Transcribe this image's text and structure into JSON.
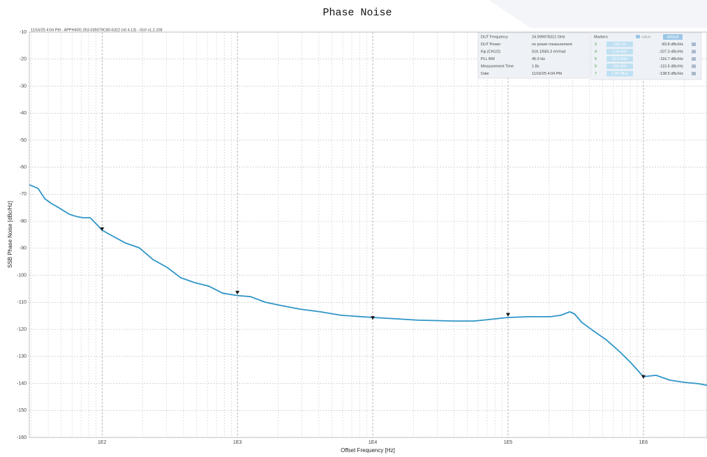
{
  "chart_data": {
    "type": "line",
    "title": "Phase Noise",
    "header": "11/16/25 4:04 PM - APPH40G 263-039379C80-6322 (v0.4.13) - GUI v1.2.108",
    "xlabel": "Offset Frequency [Hz]",
    "ylabel": "SSB Phase Noise [dBc/Hz]",
    "xscale": "log",
    "grid": true,
    "minor_grid": true,
    "color": "#2f95c8",
    "xlim": [
      29,
      2950000
    ],
    "ylim": [
      -160,
      -10
    ],
    "xticks": [
      {
        "value": 100,
        "label": "1E2"
      },
      {
        "value": 1000,
        "label": "1E3"
      },
      {
        "value": 10000,
        "label": "1E4"
      },
      {
        "value": 100000,
        "label": "1E5"
      },
      {
        "value": 1000000,
        "label": "1E6"
      }
    ],
    "yticks": [
      -10,
      -20,
      -30,
      -40,
      -50,
      -60,
      -70,
      -80,
      -90,
      -100,
      -110,
      -120,
      -130,
      -140,
      -150,
      -160
    ],
    "x": [
      29,
      33.6,
      37.8,
      42.5,
      48,
      57.3,
      64.5,
      72.6,
      81.7,
      92,
      100,
      116,
      148,
      188,
      238,
      301,
      382,
      484,
      614,
      778,
      1000,
      1250,
      1590,
      2020,
      2880,
      4100,
      5840,
      10000,
      15100,
      21600,
      39200,
      56000,
      71000,
      100000,
      144000,
      206000,
      245000,
      286000,
      310000,
      350000,
      420000,
      533000,
      676000,
      810000,
      1000000,
      1240000,
      1570000,
      2000000,
      2540000,
      2950000
    ],
    "values": [
      -66.5,
      -67.8,
      -71.7,
      -73.5,
      -75,
      -77.4,
      -78.2,
      -78.7,
      -78.7,
      -81.3,
      -83.3,
      -85.1,
      -88,
      -89.8,
      -94.2,
      -97,
      -100.9,
      -102.7,
      -104,
      -106.6,
      -107.5,
      -107.9,
      -109.9,
      -111,
      -112.5,
      -113.5,
      -114.8,
      -115.6,
      -116.1,
      -116.6,
      -116.9,
      -116.9,
      -116.4,
      -115.6,
      -115.3,
      -115.3,
      -114.8,
      -113.5,
      -114.3,
      -117.4,
      -120.3,
      -123.9,
      -128.5,
      -132.4,
      -137.5,
      -137,
      -138.8,
      -139.6,
      -140.1,
      -140.7
    ],
    "info": {
      "rows": [
        [
          "DUT Frequency",
          "24.999978312 GHz"
        ],
        [
          "DUT Power",
          "no power measurement"
        ],
        [
          "Kφ (CH1/2)",
          "516.1/583.3 mV/rad"
        ],
        [
          "PLL BW",
          "45.0 Hz"
        ],
        [
          "Measurement Time",
          "1.8s"
        ],
        [
          "Date",
          "11/16/25 4:04 PM"
        ]
      ]
    },
    "markers_panel": {
      "title": "Markers",
      "mode": "value",
      "preset": "default"
    },
    "markers": [
      {
        "id": "3",
        "frequency": 100,
        "frequency_label": "100 Hz",
        "value": -83.8,
        "value_label": "-83.8 dBc/Hz"
      },
      {
        "id": "4",
        "frequency": 1000,
        "frequency_label": "1.00 kHz",
        "value": -107.3,
        "value_label": "-107.3 dBc/Hz"
      },
      {
        "id": "5",
        "frequency": 10000,
        "frequency_label": "10.0 kHz",
        "value": -116.7,
        "value_label": "-116.7 dBc/Hz"
      },
      {
        "id": "6",
        "frequency": 100000,
        "frequency_label": "100 kHz",
        "value": -115.5,
        "value_label": "-115.5 dBc/Hz"
      },
      {
        "id": "7",
        "frequency": 1000000,
        "frequency_label": "1.00 MHz",
        "value": -138.5,
        "value_label": "-138.5 dBc/Hz"
      }
    ]
  }
}
